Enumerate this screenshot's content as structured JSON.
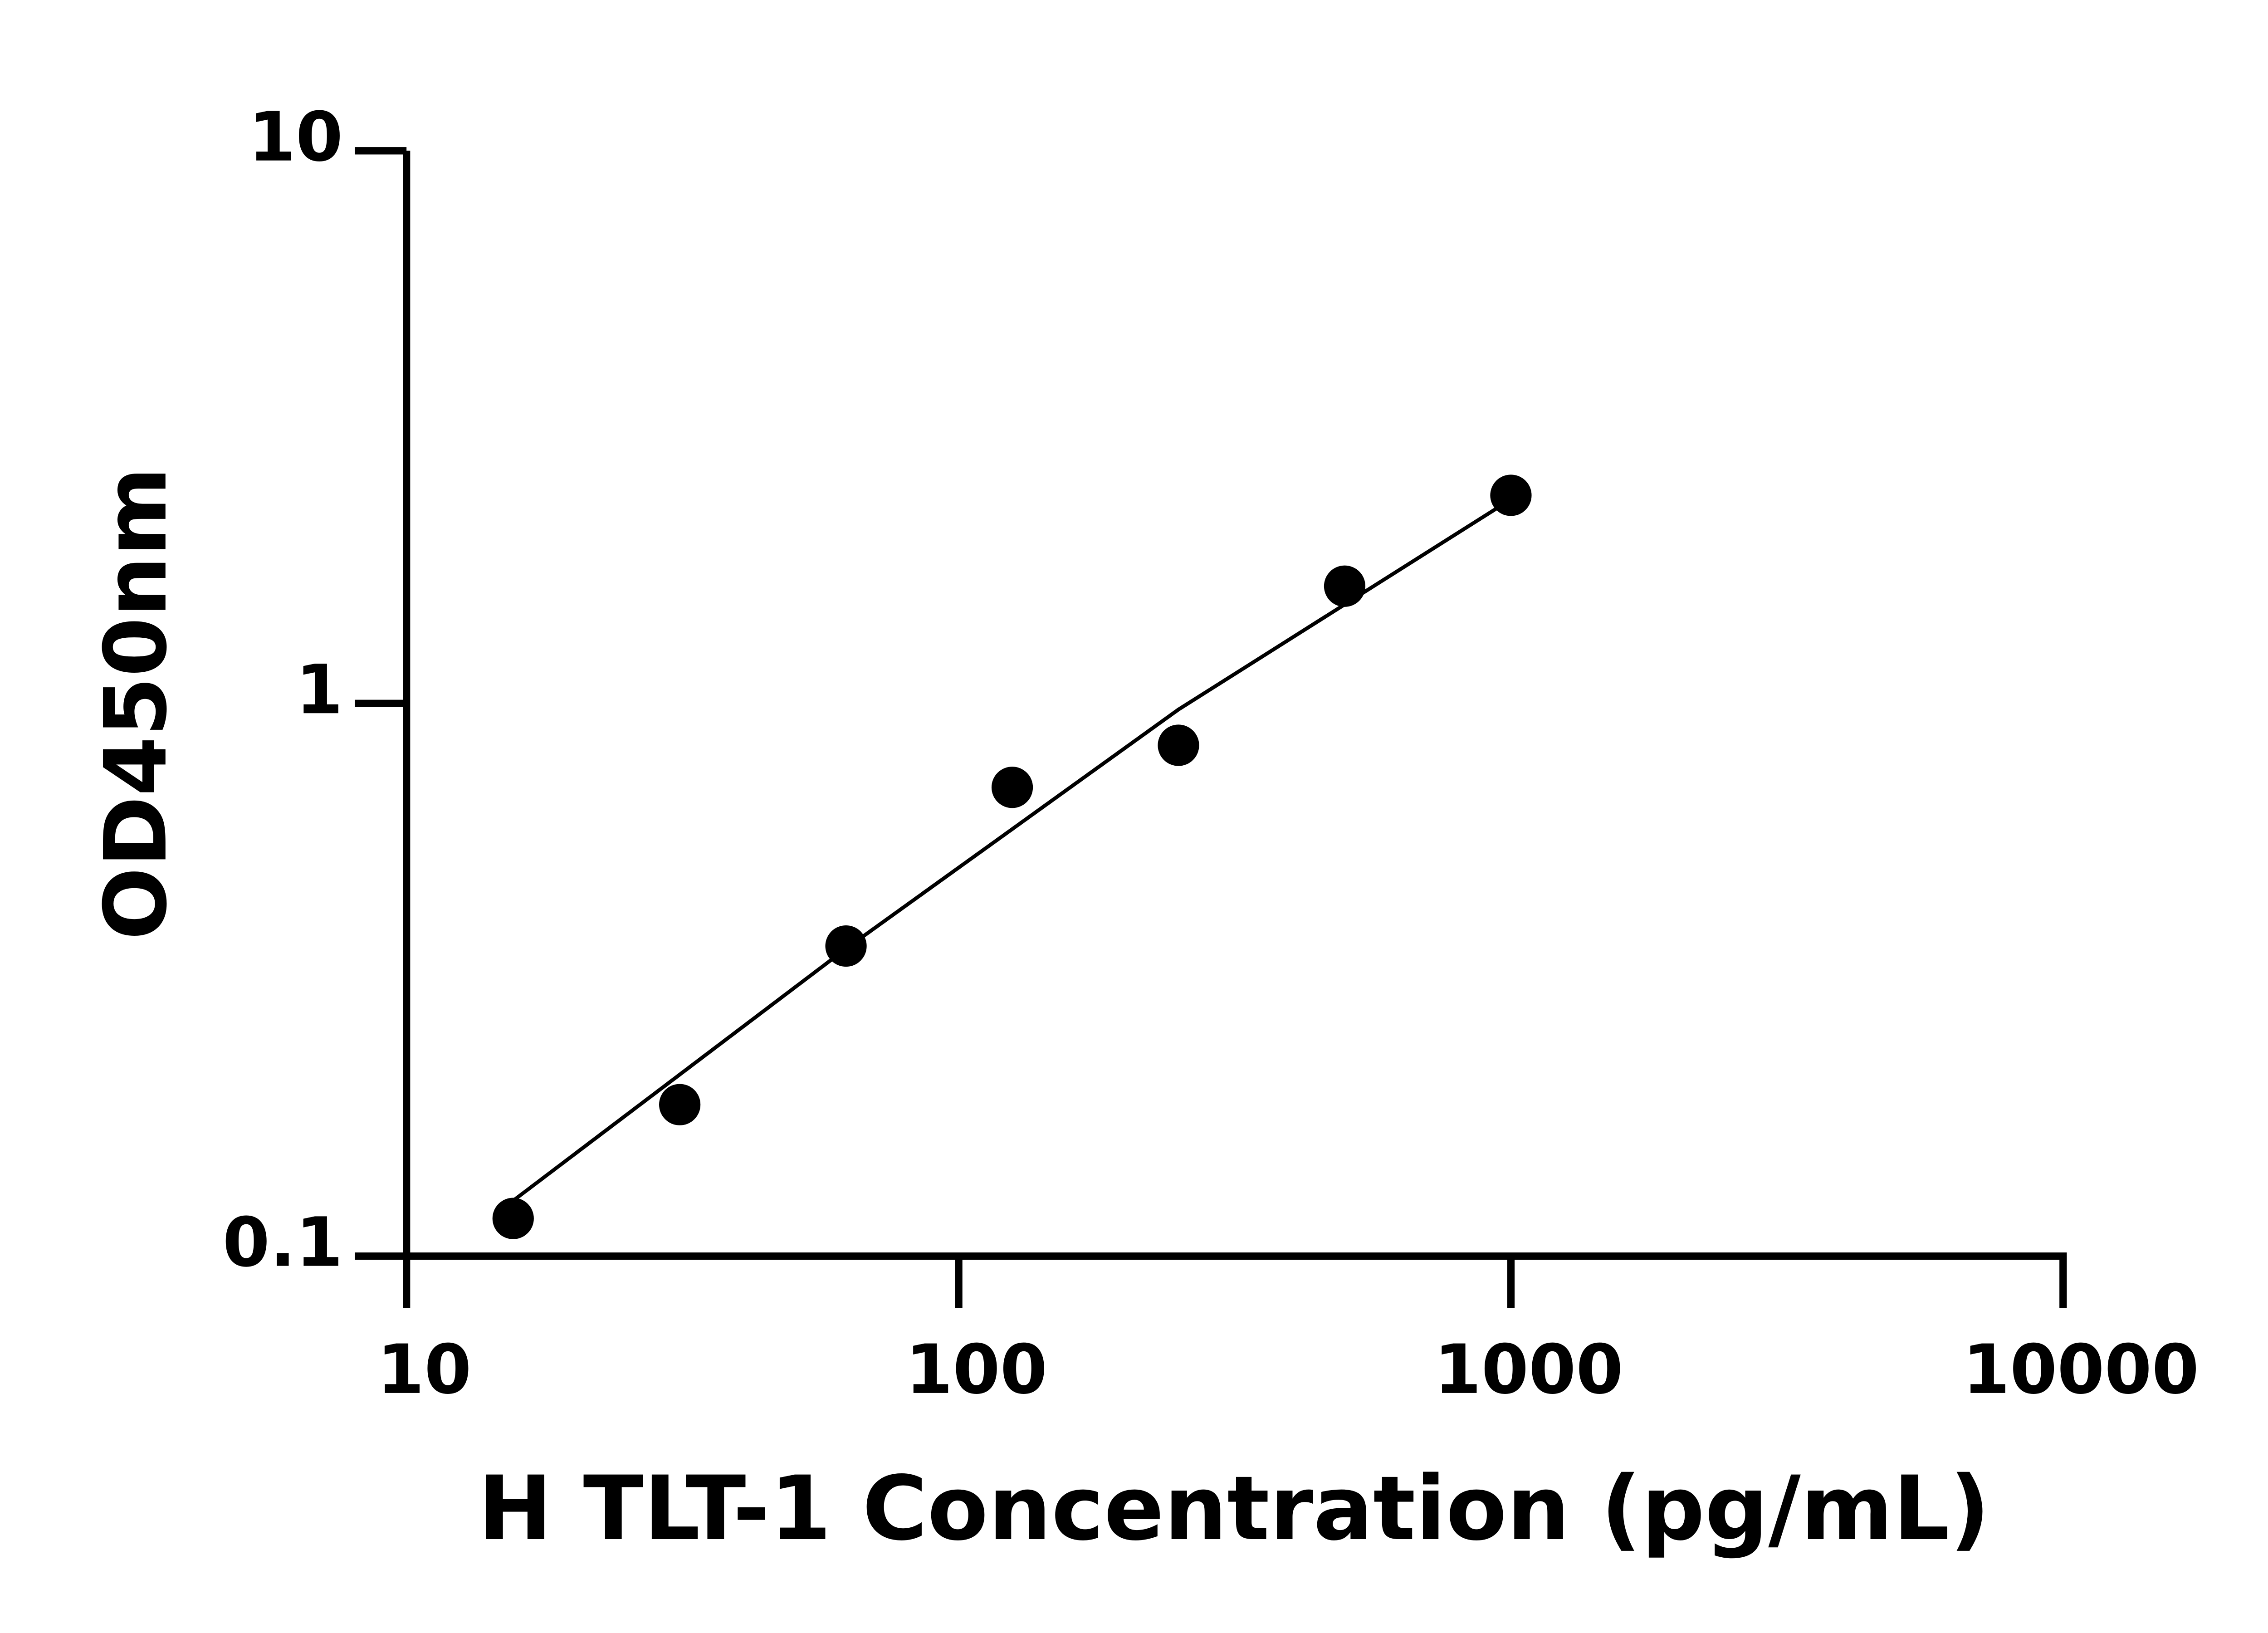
{
  "chart_data": {
    "type": "scatter",
    "xlabel": "H TLT-1 Concentration (pg/mL)",
    "ylabel": "OD450nm",
    "x": [
      15.6,
      31.25,
      62.5,
      125,
      250,
      500,
      1000
    ],
    "values": [
      0.117,
      0.188,
      0.364,
      0.705,
      0.84,
      1.63,
      2.38
    ],
    "color": "#000000",
    "fit": {
      "x": [
        15.6,
        62.5,
        250,
        1000
      ],
      "y": [
        0.126,
        0.36,
        0.975,
        2.34
      ]
    },
    "xlim": [
      10,
      10000
    ],
    "xticks": [
      10,
      100,
      1000,
      10000
    ],
    "xscale": "log",
    "ylim": [
      0.1,
      10
    ],
    "yticks": [
      0.1,
      1,
      10
    ],
    "yscale": "log",
    "grid": false
  }
}
